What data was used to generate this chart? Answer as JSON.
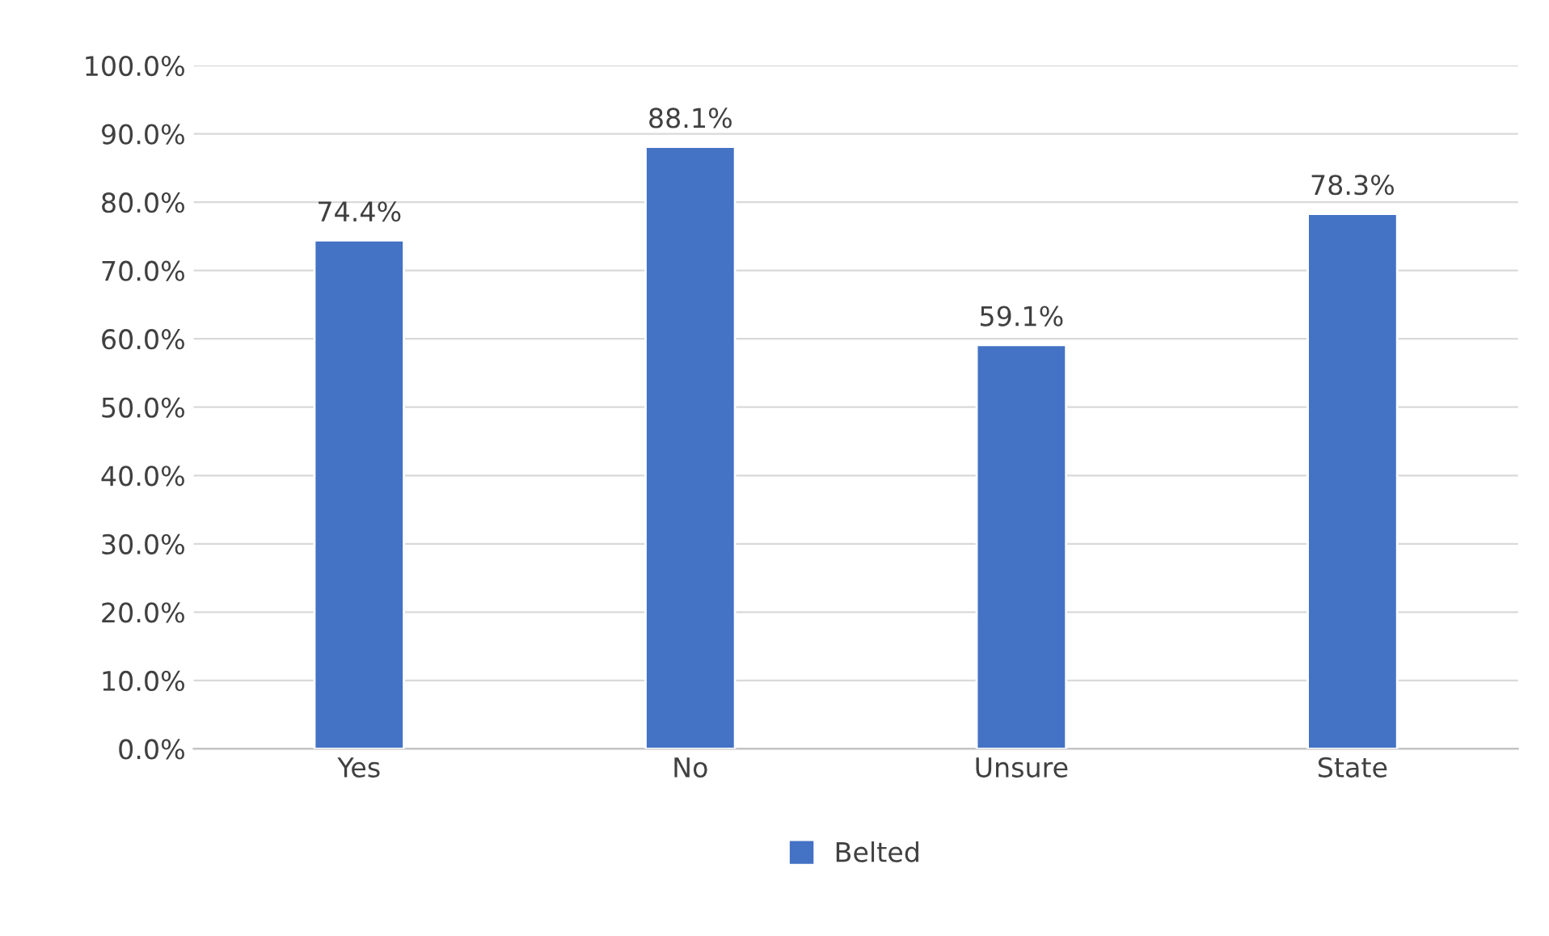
{
  "chart_data": {
    "type": "bar",
    "categories": [
      "Yes",
      "No",
      "Unsure",
      "State"
    ],
    "series": [
      {
        "name": "Belted",
        "color": "#4472c4",
        "values": [
          74.4,
          88.1,
          59.1,
          78.3
        ],
        "value_labels": [
          "74.4%",
          "88.1%",
          "59.1%",
          "78.3%"
        ]
      }
    ],
    "ylim": [
      0,
      100
    ],
    "yticks": [
      {
        "value": 0,
        "label": "0.0%"
      },
      {
        "value": 10,
        "label": "10.0%"
      },
      {
        "value": 20,
        "label": "20.0%"
      },
      {
        "value": 30,
        "label": "30.0%"
      },
      {
        "value": 40,
        "label": "40.0%"
      },
      {
        "value": 50,
        "label": "50.0%"
      },
      {
        "value": 60,
        "label": "60.0%"
      },
      {
        "value": 70,
        "label": "70.0%"
      },
      {
        "value": 80,
        "label": "80.0%"
      },
      {
        "value": 90,
        "label": "90.0%"
      },
      {
        "value": 100,
        "label": "100.0%"
      }
    ],
    "grid": "y",
    "legend": "bottom"
  }
}
